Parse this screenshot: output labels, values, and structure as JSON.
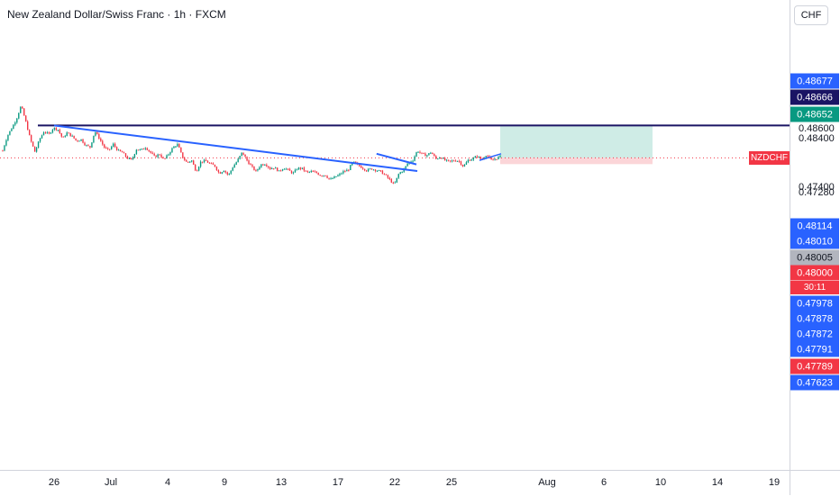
{
  "header": {
    "title": "New Zealand Dollar/Swiss Franc · 1h · FXCM",
    "currency_button": "CHF"
  },
  "chart_data": {
    "type": "candlestick",
    "title": "New Zealand Dollar/Swiss Franc · 1h · FXCM",
    "symbol": "NZDCHF",
    "currency": "CHF",
    "x_ticks": [
      "26",
      "Jul",
      "4",
      "9",
      "13",
      "17",
      "22",
      "25",
      "Aug",
      "6",
      "10",
      "14",
      "19"
    ],
    "y_ticks": [
      "0.48600",
      "0.48400",
      "0.47400",
      "0.47280"
    ],
    "price_tags": [
      {
        "label": "0.48677",
        "color": "#2962ff"
      },
      {
        "label": "0.48666",
        "color": "#1a1464"
      },
      {
        "label": "0.48652",
        "color": "#089981"
      },
      {
        "label": "0.48114",
        "color": "#2962ff"
      },
      {
        "label": "0.48010",
        "color": "#2962ff"
      },
      {
        "label": "0.48005",
        "color": "#b2b5be"
      },
      {
        "label": "0.48000",
        "color": "#f23645"
      },
      {
        "label": "0.47978",
        "color": "#2962ff"
      },
      {
        "label": "0.47878",
        "color": "#2962ff"
      },
      {
        "label": "0.47872",
        "color": "#2962ff"
      },
      {
        "label": "0.47791",
        "color": "#2962ff"
      },
      {
        "label": "0.47789",
        "color": "#f23645"
      },
      {
        "label": "0.47623",
        "color": "#2962ff"
      }
    ],
    "current_price": "0.48000",
    "countdown": "30:11",
    "horizontal_line": {
      "price": 0.48666,
      "color": "#1a1464"
    },
    "downtrend_line": {
      "from": {
        "date": "Jun 26",
        "price": 0.48666
      },
      "to": {
        "date": "Jul 26",
        "price": 0.4773
      },
      "color": "#2962ff"
    },
    "wedge_line": {
      "from": {
        "date": "Jul 24",
        "price": 0.48085
      },
      "to": {
        "date": "Jul 26",
        "price": 0.47866
      },
      "color": "#2962ff"
    },
    "position": {
      "type": "long",
      "entry": 0.48,
      "target": 0.48652,
      "stop": 0.47872,
      "profit_color": "#cfece6",
      "loss_color": "#fbd5d8"
    },
    "up_color": "#089981",
    "down_color": "#f23645",
    "grid": false,
    "series": [
      {
        "values": [
          0.4815,
          0.4845,
          0.4862,
          0.488,
          0.4908,
          0.4875,
          0.4838,
          0.4812,
          0.4838,
          0.4855,
          0.4848,
          0.4862,
          0.4858,
          0.484,
          0.4852,
          0.4845,
          0.4835,
          0.4838,
          0.4826,
          0.4822,
          0.4855,
          0.484,
          0.4822,
          0.4815,
          0.4828,
          0.4815,
          0.4811,
          0.48,
          0.4795,
          0.4818,
          0.4816,
          0.4822,
          0.4812,
          0.4802,
          0.4808,
          0.4796,
          0.4808,
          0.4822,
          0.4828,
          0.4802,
          0.479,
          0.4795,
          0.4772,
          0.4792,
          0.4794,
          0.4788,
          0.4784,
          0.4768,
          0.4775,
          0.4764,
          0.4782,
          0.4795,
          0.4812,
          0.4795,
          0.4782,
          0.4772,
          0.4786,
          0.4788,
          0.4778,
          0.478,
          0.4772,
          0.478,
          0.4775,
          0.4768,
          0.4779,
          0.4778,
          0.477,
          0.4772,
          0.477,
          0.4764,
          0.4765,
          0.4755,
          0.476,
          0.4765,
          0.4772,
          0.4775,
          0.4792,
          0.4786,
          0.478,
          0.4774,
          0.4778,
          0.4775,
          0.4772,
          0.4765,
          0.4755,
          0.4745,
          0.4768,
          0.4775,
          0.479,
          0.4795,
          0.4815,
          0.4808,
          0.4805,
          0.4812,
          0.4798,
          0.4802,
          0.4795,
          0.4792,
          0.4795,
          0.4794,
          0.4782,
          0.4795,
          0.4798,
          0.4804,
          0.4796,
          0.4807,
          0.4795,
          0.4798,
          0.4803
        ]
      }
    ]
  }
}
